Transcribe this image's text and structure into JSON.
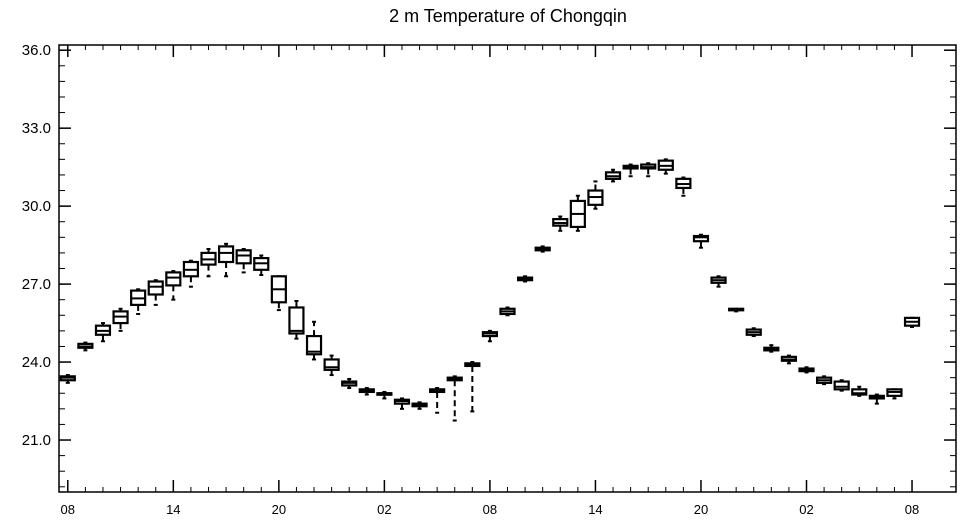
{
  "chart_data": {
    "type": "box",
    "title": "2 m Temperature of Chongqin",
    "xlabel": "",
    "ylabel": "",
    "ylim": [
      19.0,
      36.2
    ],
    "xlim": [
      -0.5,
      50.5
    ],
    "yticks": [
      21.0,
      24.0,
      27.0,
      30.0,
      33.0,
      36.0
    ],
    "ytick_labels": [
      "21.0",
      "24.0",
      "27.0",
      "30.0",
      "33.0",
      "36.0"
    ],
    "xticks": [
      0,
      6,
      12,
      18,
      24,
      30,
      36,
      42,
      48
    ],
    "xtick_labels": [
      "08",
      "14",
      "20",
      "02",
      "08",
      "14",
      "20",
      "02",
      "08"
    ],
    "grid": false,
    "boxes": [
      {
        "x": 0,
        "whisker_low": 23.2,
        "q1": 23.3,
        "median": 23.4,
        "q3": 23.45,
        "whisker_high": 23.5
      },
      {
        "x": 1,
        "whisker_low": 24.45,
        "q1": 24.55,
        "median": 24.6,
        "q3": 24.7,
        "whisker_high": 24.75
      },
      {
        "x": 2,
        "whisker_low": 24.8,
        "q1": 25.05,
        "median": 25.2,
        "q3": 25.4,
        "whisker_high": 25.5
      },
      {
        "x": 3,
        "whisker_low": 25.2,
        "q1": 25.5,
        "median": 25.75,
        "q3": 25.95,
        "whisker_high": 26.05
      },
      {
        "x": 4,
        "whisker_low": 25.85,
        "q1": 26.2,
        "median": 26.45,
        "q3": 26.75,
        "whisker_high": 26.8
      },
      {
        "x": 5,
        "whisker_low": 26.2,
        "q1": 26.6,
        "median": 26.9,
        "q3": 27.1,
        "whisker_high": 27.15
      },
      {
        "x": 6,
        "whisker_low": 26.4,
        "q1": 26.95,
        "median": 27.25,
        "q3": 27.45,
        "whisker_high": 27.5
      },
      {
        "x": 7,
        "whisker_low": 26.9,
        "q1": 27.3,
        "median": 27.55,
        "q3": 27.85,
        "whisker_high": 27.9
      },
      {
        "x": 8,
        "whisker_low": 27.3,
        "q1": 27.75,
        "median": 27.95,
        "q3": 28.2,
        "whisker_high": 28.35
      },
      {
        "x": 9,
        "whisker_low": 27.3,
        "q1": 27.85,
        "median": 28.2,
        "q3": 28.45,
        "whisker_high": 28.55
      },
      {
        "x": 10,
        "whisker_low": 27.45,
        "q1": 27.8,
        "median": 28.1,
        "q3": 28.3,
        "whisker_high": 28.35
      },
      {
        "x": 11,
        "whisker_low": 27.35,
        "q1": 27.55,
        "median": 27.8,
        "q3": 28.0,
        "whisker_high": 28.1
      },
      {
        "x": 12,
        "whisker_low": 26.0,
        "q1": 26.3,
        "median": 26.8,
        "q3": 27.3,
        "whisker_high": 27.3
      },
      {
        "x": 13,
        "whisker_low": 24.9,
        "q1": 25.1,
        "median": 25.2,
        "q3": 26.1,
        "whisker_high": 26.35
      },
      {
        "x": 14,
        "whisker_low": 24.1,
        "q1": 24.3,
        "median": 24.4,
        "q3": 25.0,
        "whisker_high": 25.55
      },
      {
        "x": 15,
        "whisker_low": 23.5,
        "q1": 23.7,
        "median": 23.8,
        "q3": 24.1,
        "whisker_high": 24.25
      },
      {
        "x": 16,
        "whisker_low": 23.0,
        "q1": 23.1,
        "median": 23.2,
        "q3": 23.25,
        "whisker_high": 23.35
      },
      {
        "x": 17,
        "whisker_low": 22.75,
        "q1": 22.85,
        "median": 22.9,
        "q3": 22.95,
        "whisker_high": 23.0
      },
      {
        "x": 18,
        "whisker_low": 22.6,
        "q1": 22.75,
        "median": 22.8,
        "q3": 22.8,
        "whisker_high": 22.85
      },
      {
        "x": 19,
        "whisker_low": 22.2,
        "q1": 22.4,
        "median": 22.5,
        "q3": 22.55,
        "whisker_high": 22.6
      },
      {
        "x": 20,
        "whisker_low": 22.2,
        "q1": 22.3,
        "median": 22.35,
        "q3": 22.4,
        "whisker_high": 22.45
      },
      {
        "x": 21,
        "whisker_low": 22.05,
        "q1": 22.85,
        "median": 22.9,
        "q3": 22.95,
        "whisker_high": 23.0
      },
      {
        "x": 22,
        "whisker_low": 21.75,
        "q1": 23.3,
        "median": 23.35,
        "q3": 23.4,
        "whisker_high": 23.45
      },
      {
        "x": 23,
        "whisker_low": 22.1,
        "q1": 23.85,
        "median": 23.9,
        "q3": 23.95,
        "whisker_high": 24.0
      },
      {
        "x": 24,
        "whisker_low": 24.8,
        "q1": 25.0,
        "median": 25.1,
        "q3": 25.15,
        "whisker_high": 25.2
      },
      {
        "x": 25,
        "whisker_low": 25.8,
        "q1": 25.85,
        "median": 25.95,
        "q3": 26.05,
        "whisker_high": 26.1
      },
      {
        "x": 26,
        "whisker_low": 27.1,
        "q1": 27.15,
        "median": 27.2,
        "q3": 27.25,
        "whisker_high": 27.3
      },
      {
        "x": 27,
        "whisker_low": 28.25,
        "q1": 28.3,
        "median": 28.35,
        "q3": 28.4,
        "whisker_high": 28.45
      },
      {
        "x": 28,
        "whisker_low": 29.05,
        "q1": 29.25,
        "median": 29.35,
        "q3": 29.5,
        "whisker_high": 29.6
      },
      {
        "x": 29,
        "whisker_low": 29.05,
        "q1": 29.2,
        "median": 29.7,
        "q3": 30.2,
        "whisker_high": 30.4
      },
      {
        "x": 30,
        "whisker_low": 29.9,
        "q1": 30.05,
        "median": 30.35,
        "q3": 30.6,
        "whisker_high": 30.95
      },
      {
        "x": 31,
        "whisker_low": 30.95,
        "q1": 31.05,
        "median": 31.15,
        "q3": 31.3,
        "whisker_high": 31.4
      },
      {
        "x": 32,
        "whisker_low": 31.15,
        "q1": 31.45,
        "median": 31.5,
        "q3": 31.55,
        "whisker_high": 31.6
      },
      {
        "x": 33,
        "whisker_low": 31.15,
        "q1": 31.45,
        "median": 31.5,
        "q3": 31.6,
        "whisker_high": 31.65
      },
      {
        "x": 34,
        "whisker_low": 31.25,
        "q1": 31.4,
        "median": 31.55,
        "q3": 31.75,
        "whisker_high": 31.8
      },
      {
        "x": 35,
        "whisker_low": 30.4,
        "q1": 30.7,
        "median": 30.85,
        "q3": 31.05,
        "whisker_high": 31.1
      },
      {
        "x": 36,
        "whisker_low": 28.4,
        "q1": 28.65,
        "median": 28.8,
        "q3": 28.85,
        "whisker_high": 28.9
      },
      {
        "x": 37,
        "whisker_low": 26.9,
        "q1": 27.05,
        "median": 27.15,
        "q3": 27.25,
        "whisker_high": 27.3
      },
      {
        "x": 38,
        "whisker_low": 25.95,
        "q1": 26.0,
        "median": 26.0,
        "q3": 26.05,
        "whisker_high": 26.05
      },
      {
        "x": 39,
        "whisker_low": 25.0,
        "q1": 25.05,
        "median": 25.15,
        "q3": 25.25,
        "whisker_high": 25.3
      },
      {
        "x": 40,
        "whisker_low": 24.4,
        "q1": 24.45,
        "median": 24.5,
        "q3": 24.55,
        "whisker_high": 24.65
      },
      {
        "x": 41,
        "whisker_low": 23.95,
        "q1": 24.05,
        "median": 24.1,
        "q3": 24.2,
        "whisker_high": 24.25
      },
      {
        "x": 42,
        "whisker_low": 23.6,
        "q1": 23.65,
        "median": 23.7,
        "q3": 23.75,
        "whisker_high": 23.8
      },
      {
        "x": 43,
        "whisker_low": 23.15,
        "q1": 23.2,
        "median": 23.3,
        "q3": 23.4,
        "whisker_high": 23.45
      },
      {
        "x": 44,
        "whisker_low": 22.9,
        "q1": 22.95,
        "median": 23.05,
        "q3": 23.25,
        "whisker_high": 23.3
      },
      {
        "x": 45,
        "whisker_low": 22.7,
        "q1": 22.75,
        "median": 22.8,
        "q3": 22.95,
        "whisker_high": 23.05
      },
      {
        "x": 46,
        "whisker_low": 22.4,
        "q1": 22.6,
        "median": 22.65,
        "q3": 22.7,
        "whisker_high": 22.75
      },
      {
        "x": 47,
        "whisker_low": 22.6,
        "q1": 22.7,
        "median": 22.85,
        "q3": 22.95,
        "whisker_high": 22.95
      },
      {
        "x": 48,
        "whisker_low": 25.35,
        "q1": 25.4,
        "median": 25.55,
        "q3": 25.7,
        "whisker_high": 25.7
      }
    ]
  }
}
